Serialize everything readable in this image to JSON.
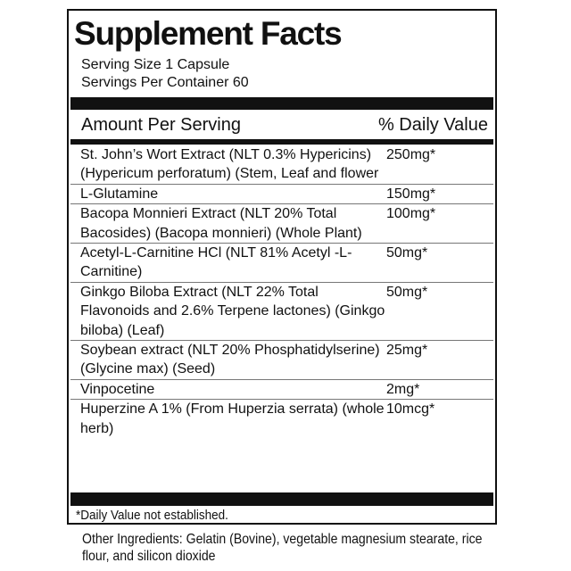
{
  "title": "Supplement Facts",
  "serving_size": "Serving Size 1 Capsule",
  "servings_per_container": "Servings Per Container 60",
  "header": {
    "amount": "Amount Per Serving",
    "daily_value": "% Daily Value"
  },
  "ingredients": [
    {
      "name": "St. John’s Wort Extract (NLT 0.3% Hypericins) (Hypericum perforatum) (Stem, Leaf and flower",
      "amount": "250mg",
      "dv": "*"
    },
    {
      "name": "L-Glutamine",
      "amount": "150mg",
      "dv": "*"
    },
    {
      "name": "Bacopa Monnieri Extract (NLT 20% Total Bacosides) (Bacopa monnieri) (Whole Plant)",
      "amount": "100mg",
      "dv": "*"
    },
    {
      "name": "Acetyl-L-Carnitine HCl (NLT 81% Acetyl -L-Carnitine)",
      "amount": "50mg",
      "dv": "*"
    },
    {
      "name": "Ginkgo Biloba Extract (NLT 22% Total Flavonoids and 2.6% Terpene lactones) (Ginkgo biloba) (Leaf)",
      "amount": "50mg",
      "dv": "*"
    },
    {
      "name": "Soybean extract (NLT 20% Phosphatidylserine) (Glycine max) (Seed)",
      "amount": "25mg",
      "dv": "*"
    },
    {
      "name": "Vinpocetine",
      "amount": "2mg",
      "dv": "*"
    },
    {
      "name": "Huperzine A 1% (From Huperzia serrata) (whole herb)",
      "amount": "10mcg",
      "dv": "*"
    }
  ],
  "footnote": "*Daily Value not established.",
  "other_ingredients": "Other Ingredients: Gelatin (Bovine), vegetable magnesium stearate, rice flour, and silicon dioxide"
}
